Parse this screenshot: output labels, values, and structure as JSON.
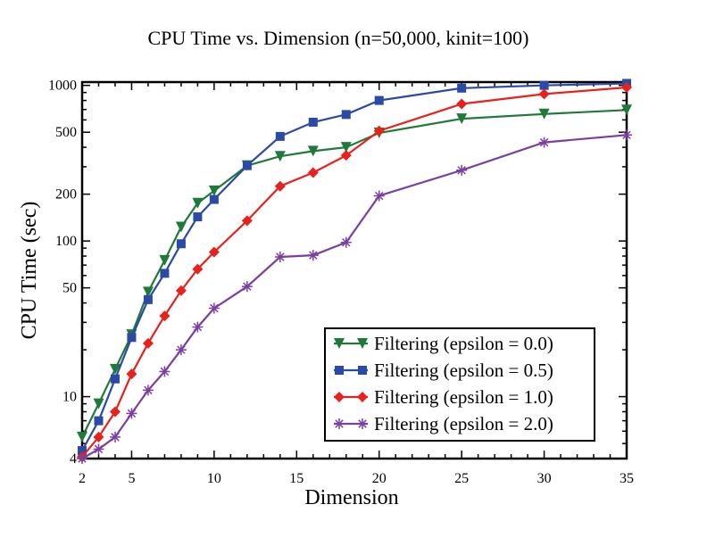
{
  "chart_data": {
    "type": "line",
    "title": "CPU Time vs. Dimension (n=50,000, kinit=100)",
    "xlabel": "Dimension",
    "ylabel": "CPU Time (sec)",
    "xlim": [
      2,
      35
    ],
    "ylim": [
      4,
      1050
    ],
    "yscale": "log",
    "grid": false,
    "legend_position": "bottom-right",
    "x_ticks": [
      2,
      5,
      10,
      15,
      20,
      25,
      30,
      35
    ],
    "y_ticks": [
      4,
      10,
      50,
      100,
      200,
      500,
      1000
    ],
    "series": [
      {
        "name": "Filtering (epsilon = 0.0)",
        "color": "#1f7a3a",
        "marker": "triangle-down",
        "x": [
          2,
          3,
          4,
          5,
          6,
          7,
          8,
          9,
          10,
          12,
          14,
          16,
          18,
          20,
          25,
          30,
          35
        ],
        "y": [
          5.5,
          9,
          15,
          25,
          47,
          75,
          123,
          175,
          210,
          305,
          350,
          378,
          400,
          495,
          610,
          655,
          695
        ]
      },
      {
        "name": "Filtering (epsilon = 0.5)",
        "color": "#2b4aa6",
        "marker": "square",
        "x": [
          2,
          3,
          4,
          5,
          6,
          7,
          8,
          9,
          10,
          12,
          14,
          16,
          18,
          20,
          25,
          30,
          35
        ],
        "y": [
          4.5,
          7,
          13,
          24,
          42,
          62,
          96,
          143,
          185,
          305,
          470,
          580,
          650,
          800,
          960,
          1000,
          1030
        ]
      },
      {
        "name": "Filtering (epsilon = 1.0)",
        "color": "#e8211c",
        "marker": "diamond",
        "x": [
          2,
          3,
          4,
          5,
          6,
          7,
          8,
          9,
          10,
          12,
          14,
          16,
          18,
          20,
          25,
          30,
          35
        ],
        "y": [
          4.1,
          5.5,
          8,
          14,
          22,
          33,
          48,
          66,
          85,
          135,
          225,
          275,
          355,
          510,
          760,
          880,
          970
        ]
      },
      {
        "name": "Filtering (epsilon = 2.0)",
        "color": "#7a3fa0",
        "marker": "asterisk",
        "x": [
          2,
          3,
          4,
          5,
          6,
          7,
          8,
          9,
          10,
          12,
          14,
          16,
          18,
          20,
          25,
          30,
          35
        ],
        "y": [
          4,
          4.6,
          5.5,
          7.8,
          11,
          14.5,
          20,
          28,
          37,
          51,
          79,
          81,
          98,
          195,
          285,
          430,
          480
        ]
      }
    ]
  }
}
